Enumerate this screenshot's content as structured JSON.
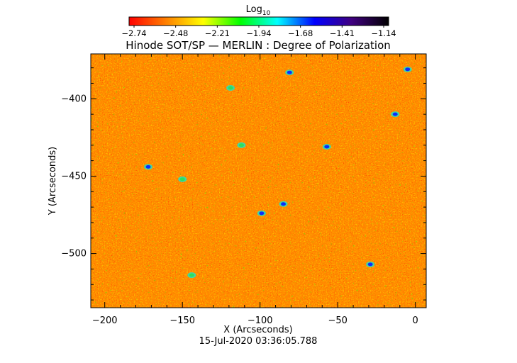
{
  "colorbar": {
    "title": "Log",
    "title_subscript": "10",
    "tick_labels": [
      "−2.74",
      "−2.48",
      "−2.21",
      "−1.94",
      "−1.68",
      "−1.41",
      "−1.14"
    ],
    "range": [
      -2.74,
      -1.14
    ],
    "colormap": [
      "#ff0000",
      "#ff8000",
      "#ffff00",
      "#00ff00",
      "#00ffff",
      "#0000ff",
      "#400080",
      "#000000"
    ]
  },
  "chart_data": {
    "type": "heatmap",
    "title": "Hinode SOT/SP — MERLIN : Degree of Polarization",
    "xlabel": "X (Arcseconds)",
    "ylabel": "Y (Arcseconds)",
    "xlim": [
      -209,
      7
    ],
    "ylim": [
      -535,
      -371
    ],
    "x_ticks": [
      -200,
      -150,
      -100,
      -50,
      0
    ],
    "y_ticks": [
      -400,
      -450,
      -500
    ],
    "x_tick_labels": [
      "−200",
      "−150",
      "−100",
      "−50",
      "0"
    ],
    "y_tick_labels": [
      "−400",
      "−450",
      "−500"
    ],
    "value_range": [
      -2.74,
      -1.14
    ],
    "dominant_level": "orange",
    "compact_features": [
      {
        "x": -81,
        "y": -383,
        "level": "blue"
      },
      {
        "x": -172,
        "y": -444,
        "level": "blue"
      },
      {
        "x": -85,
        "y": -468,
        "level": "blue"
      },
      {
        "x": -5,
        "y": -381,
        "level": "blue"
      },
      {
        "x": -29,
        "y": -507,
        "level": "blue"
      },
      {
        "x": -13,
        "y": -410,
        "level": "blue"
      },
      {
        "x": -57,
        "y": -431,
        "level": "blue"
      },
      {
        "x": -99,
        "y": -474,
        "level": "blue"
      },
      {
        "x": -119,
        "y": -393,
        "level": "green"
      },
      {
        "x": -144,
        "y": -514,
        "level": "green"
      },
      {
        "x": -150,
        "y": -452,
        "level": "green"
      },
      {
        "x": -112,
        "y": -430,
        "level": "green"
      }
    ],
    "timestamp": "15-Jul-2020 03:36:05.788"
  }
}
